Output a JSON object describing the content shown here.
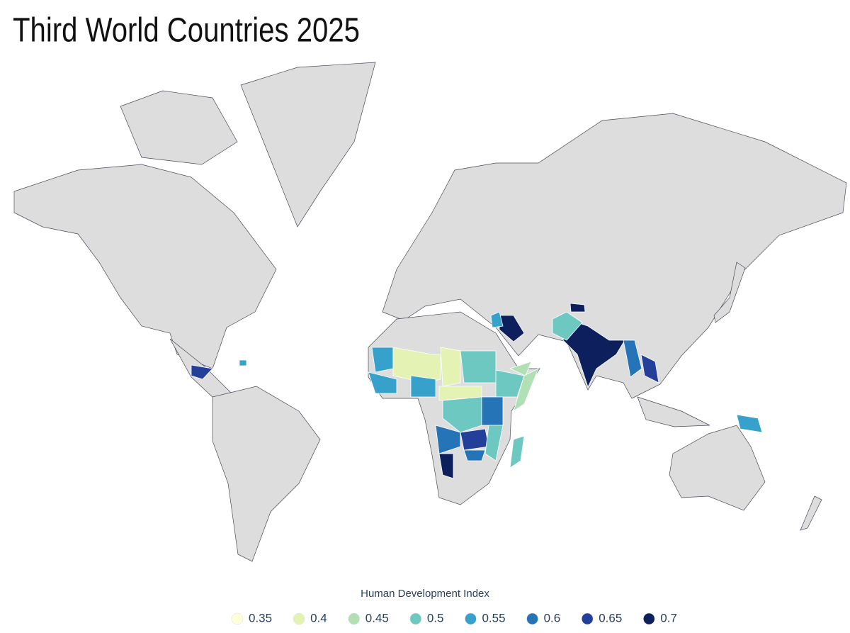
{
  "header": {
    "title": "Third World Countries 2025"
  },
  "legend": {
    "title": "Human Development Index",
    "items": [
      {
        "value": 0.35,
        "color": "#ffffd9"
      },
      {
        "value": 0.4,
        "color": "#e4f3b4"
      },
      {
        "value": 0.45,
        "color": "#b0e0b4"
      },
      {
        "value": 0.5,
        "color": "#6cc8c0"
      },
      {
        "value": 0.55,
        "color": "#36a2cb"
      },
      {
        "value": 0.6,
        "color": "#2474b7"
      },
      {
        "value": 0.65,
        "color": "#233f99"
      },
      {
        "value": 0.7,
        "color": "#0d1f5c"
      }
    ]
  },
  "map": {
    "regions": [
      {
        "value": 0.7
      },
      {
        "value": 0.5
      },
      {
        "value": 0.7
      },
      {
        "value": 0.7
      },
      {
        "value": 0.55
      },
      {
        "value": 0.6
      },
      {
        "value": 0.65
      },
      {
        "value": 0.45
      },
      {
        "value": 0.65
      },
      {
        "value": 0.55
      },
      {
        "value": 0.55
      },
      {
        "value": 0.55
      },
      {
        "value": 0.4
      },
      {
        "value": 0.4
      },
      {
        "value": 0.5
      },
      {
        "value": 0.5
      },
      {
        "value": 0.45
      },
      {
        "value": 0.55
      },
      {
        "value": 0.55
      },
      {
        "value": 0.4
      },
      {
        "value": 0.5
      },
      {
        "value": 0.6
      },
      {
        "value": 0.6
      },
      {
        "value": 0.65
      },
      {
        "value": 0.5
      },
      {
        "value": 0.7
      },
      {
        "value": 0.6
      },
      {
        "value": 0.5
      }
    ]
  }
}
